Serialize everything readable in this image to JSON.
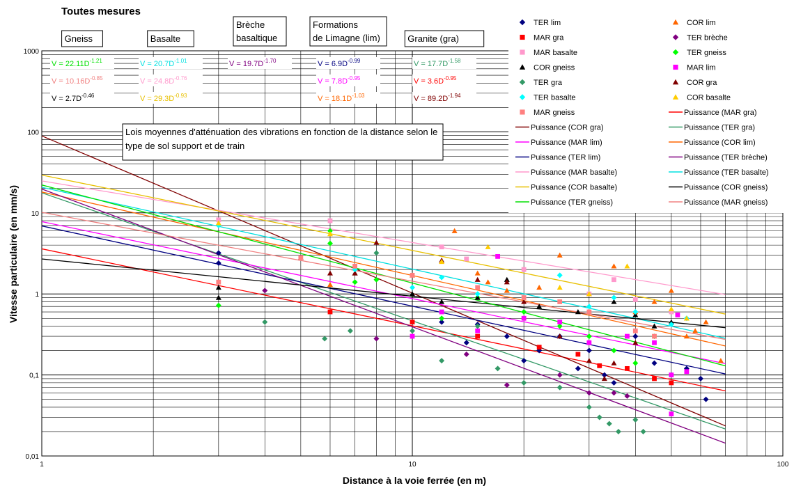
{
  "chart_data": {
    "type": "scatter",
    "title": "Toutes mesures",
    "xlabel": "Distance à la voie ferrée (en m)",
    "ylabel": "Vitesse particulaire (en mm/s)",
    "x_scale": "log",
    "y_scale": "log",
    "xlim": [
      1,
      100
    ],
    "ylim": [
      0.01,
      1000
    ],
    "x_ticks": [
      "1",
      "10",
      "100"
    ],
    "y_ticks": [
      "1000",
      "100",
      "10",
      "1",
      "0,1",
      "0,01"
    ],
    "grid": true,
    "legend_position": "top-right",
    "annotation": "Lois moyennes d'atténuation des vibrations en fonction de la distance selon le type de sol support et de train",
    "groups": [
      {
        "label": "Gneiss",
        "equations": [
          {
            "coef": "22.11",
            "exp": "-1.21",
            "color": "#00e000"
          },
          {
            "coef": "10.16",
            "exp": "-0.85",
            "color": "#f08080"
          },
          {
            "coef": "2.7",
            "exp": "-0.46",
            "color": "#000000"
          }
        ]
      },
      {
        "label": "Basalte",
        "equations": [
          {
            "coef": "20.7",
            "exp": "-1.01",
            "color": "#00e0e0"
          },
          {
            "coef": "24.8",
            "exp": "-0.76",
            "color": "#ff99cc"
          },
          {
            "coef": "29.3",
            "exp": "-0.93",
            "color": "#e8c000"
          }
        ]
      },
      {
        "label": "Brèche basaltique",
        "equations": [
          {
            "coef": "19.7",
            "exp": "-1.70",
            "color": "#800080"
          }
        ]
      },
      {
        "label": "Formations de Limagne (lim)",
        "equations": [
          {
            "coef": "6.9",
            "exp": "-0.99",
            "color": "#000080"
          },
          {
            "coef": "7.8",
            "exp": "-0.95",
            "color": "#ff00ff"
          },
          {
            "coef": "18.1",
            "exp": "-1.03",
            "color": "#ff6600"
          }
        ]
      },
      {
        "label": "Granite (gra)",
        "equations": [
          {
            "coef": "17.7",
            "exp": "-1.58",
            "color": "#339966"
          },
          {
            "coef": "3.6",
            "exp": "-0.95",
            "color": "#ff0000"
          },
          {
            "coef": "89.2",
            "exp": "-1.94",
            "color": "#800000"
          }
        ]
      }
    ],
    "series": [
      {
        "name": "TER lim",
        "marker": "diamond",
        "color": "#000080",
        "points": [
          [
            3,
            3.2
          ],
          [
            3,
            2.4
          ],
          [
            12,
            0.45
          ],
          [
            14,
            0.25
          ],
          [
            15,
            0.42
          ],
          [
            18,
            0.3
          ],
          [
            20,
            0.15
          ],
          [
            22,
            0.2
          ],
          [
            25,
            0.3
          ],
          [
            28,
            0.12
          ],
          [
            30,
            0.2
          ],
          [
            33,
            0.1
          ],
          [
            35,
            0.08
          ],
          [
            40,
            0.3
          ],
          [
            45,
            0.14
          ],
          [
            50,
            0.1
          ],
          [
            55,
            0.12
          ],
          [
            60,
            0.09
          ],
          [
            62,
            0.05
          ]
        ]
      },
      {
        "name": "COR lim",
        "marker": "triangle",
        "color": "#ff6600",
        "points": [
          [
            6,
            1.3
          ],
          [
            10,
            1.7
          ],
          [
            13,
            6.0
          ],
          [
            15,
            1.8
          ],
          [
            16,
            1.4
          ],
          [
            18,
            1.1
          ],
          [
            22,
            1.2
          ],
          [
            25,
            3.0
          ],
          [
            30,
            1.0
          ],
          [
            35,
            2.2
          ],
          [
            40,
            0.6
          ],
          [
            45,
            0.8
          ],
          [
            50,
            1.1
          ],
          [
            55,
            0.3
          ],
          [
            58,
            0.35
          ],
          [
            62,
            0.45
          ],
          [
            68,
            0.15
          ]
        ]
      },
      {
        "name": "MAR gra",
        "marker": "square",
        "color": "#ff0000",
        "points": [
          [
            6,
            0.6
          ],
          [
            10,
            0.45
          ],
          [
            15,
            0.3
          ],
          [
            22,
            0.22
          ],
          [
            28,
            0.18
          ],
          [
            32,
            0.13
          ],
          [
            38,
            0.12
          ],
          [
            45,
            0.09
          ],
          [
            50,
            0.08
          ]
        ]
      },
      {
        "name": "TER brèche",
        "marker": "diamond",
        "color": "#800080",
        "points": [
          [
            4,
            1.1
          ],
          [
            8,
            0.28
          ],
          [
            14,
            0.18
          ],
          [
            18,
            0.075
          ],
          [
            25,
            0.1
          ],
          [
            30,
            0.06
          ],
          [
            35,
            0.06
          ],
          [
            38,
            0.055
          ]
        ]
      },
      {
        "name": "MAR basalte",
        "marker": "square",
        "color": "#ff99cc",
        "points": [
          [
            3,
            8.2
          ],
          [
            6,
            8.0
          ],
          [
            12,
            3.8
          ],
          [
            14,
            2.7
          ],
          [
            20,
            2.0
          ],
          [
            30,
            1.0
          ],
          [
            35,
            1.5
          ],
          [
            40,
            0.85
          ],
          [
            50,
            0.6
          ]
        ]
      },
      {
        "name": "TER gneiss",
        "marker": "diamond",
        "color": "#00ff00",
        "points": [
          [
            3,
            0.72
          ],
          [
            6,
            6.0
          ],
          [
            6,
            4.2
          ],
          [
            7,
            1.4
          ],
          [
            8,
            1.5
          ],
          [
            12,
            0.5
          ],
          [
            15,
            0.9
          ],
          [
            20,
            0.6
          ],
          [
            25,
            0.4
          ],
          [
            30,
            0.3
          ],
          [
            35,
            0.2
          ],
          [
            40,
            0.14
          ],
          [
            45,
            0.3
          ]
        ]
      },
      {
        "name": "COR gneiss",
        "marker": "triangle",
        "color": "#000000",
        "points": [
          [
            3,
            1.2
          ],
          [
            3,
            0.9
          ],
          [
            7,
            1.8
          ],
          [
            10,
            1.0
          ],
          [
            12,
            0.8
          ],
          [
            15,
            0.9
          ],
          [
            18,
            1.5
          ],
          [
            22,
            0.7
          ],
          [
            28,
            0.6
          ],
          [
            35,
            0.8
          ],
          [
            40,
            0.55
          ],
          [
            45,
            0.4
          ],
          [
            50,
            0.45
          ]
        ]
      },
      {
        "name": "MAR lim",
        "marker": "square",
        "color": "#ff00ff",
        "points": [
          [
            10,
            0.3
          ],
          [
            12,
            0.6
          ],
          [
            15,
            0.35
          ],
          [
            17,
            2.9
          ],
          [
            20,
            0.5
          ],
          [
            25,
            0.45
          ],
          [
            30,
            0.25
          ],
          [
            38,
            0.3
          ],
          [
            45,
            0.25
          ],
          [
            50,
            0.1
          ],
          [
            50,
            0.033
          ],
          [
            52,
            0.55
          ],
          [
            55,
            0.11
          ]
        ]
      },
      {
        "name": "TER gra",
        "marker": "diamond",
        "color": "#339966",
        "points": [
          [
            4,
            0.45
          ],
          [
            5.8,
            0.28
          ],
          [
            6.8,
            0.35
          ],
          [
            8,
            3.2
          ],
          [
            10,
            0.35
          ],
          [
            12,
            0.15
          ],
          [
            15,
            0.4
          ],
          [
            17,
            0.12
          ],
          [
            20,
            0.08
          ],
          [
            25,
            0.07
          ],
          [
            30,
            0.04
          ],
          [
            32,
            0.03
          ],
          [
            34,
            0.025
          ],
          [
            36,
            0.02
          ],
          [
            40,
            0.028
          ],
          [
            42,
            0.02
          ]
        ]
      },
      {
        "name": "COR gra",
        "marker": "triangle",
        "color": "#800000",
        "points": [
          [
            5,
            2.8
          ],
          [
            6,
            1.8
          ],
          [
            7,
            1.8
          ],
          [
            8,
            4.3
          ],
          [
            12,
            2.6
          ],
          [
            15,
            1.5
          ],
          [
            18,
            1.4
          ],
          [
            20,
            0.8
          ],
          [
            25,
            0.3
          ],
          [
            30,
            0.15
          ],
          [
            33,
            0.09
          ],
          [
            35,
            0.14
          ],
          [
            40,
            0.25
          ]
        ]
      },
      {
        "name": "TER basalte",
        "marker": "diamond",
        "color": "#00ffff",
        "points": [
          [
            3,
            7.0
          ],
          [
            7,
            2.0
          ],
          [
            10,
            1.2
          ],
          [
            12,
            1.6
          ],
          [
            15,
            1.0
          ],
          [
            20,
            0.9
          ],
          [
            25,
            1.7
          ],
          [
            30,
            0.7
          ],
          [
            35,
            0.9
          ],
          [
            40,
            0.6
          ],
          [
            50,
            0.42
          ],
          [
            55,
            0.5
          ]
        ]
      },
      {
        "name": "COR basalte",
        "marker": "triangle",
        "color": "#ffcc00",
        "points": [
          [
            3,
            7.5
          ],
          [
            6,
            5.5
          ],
          [
            12,
            2.5
          ],
          [
            16,
            3.8
          ],
          [
            25,
            1.2
          ],
          [
            30,
            1.0
          ],
          [
            38,
            2.2
          ],
          [
            50,
            0.65
          ],
          [
            55,
            0.5
          ]
        ]
      },
      {
        "name": "MAR gneiss",
        "marker": "square",
        "color": "#ff8080",
        "points": [
          [
            3,
            1.4
          ],
          [
            5,
            2.8
          ],
          [
            7,
            2.2
          ],
          [
            10,
            1.7
          ],
          [
            15,
            1.2
          ],
          [
            20,
            0.9
          ],
          [
            25,
            0.8
          ],
          [
            30,
            0.6
          ],
          [
            40,
            0.35
          ],
          [
            45,
            0.3
          ]
        ]
      }
    ],
    "trendlines": [
      {
        "name": "Puissance (MAR gra)",
        "coef": 3.6,
        "exp": -0.95,
        "color": "#ff0000"
      },
      {
        "name": "Puissance (COR gra)",
        "coef": 89.2,
        "exp": -1.94,
        "color": "#800000"
      },
      {
        "name": "Puissance (TER gra)",
        "coef": 17.7,
        "exp": -1.58,
        "color": "#339966"
      },
      {
        "name": "Puissance (MAR lim)",
        "coef": 7.8,
        "exp": -0.95,
        "color": "#ff00ff"
      },
      {
        "name": "Puissance (COR lim)",
        "coef": 18.1,
        "exp": -1.03,
        "color": "#ff6600"
      },
      {
        "name": "Puissance (TER lim)",
        "coef": 6.9,
        "exp": -0.99,
        "color": "#000080"
      },
      {
        "name": "Puissance (TER brèche)",
        "coef": 19.7,
        "exp": -1.7,
        "color": "#800080"
      },
      {
        "name": "Puissance (MAR basalte)",
        "coef": 24.8,
        "exp": -0.76,
        "color": "#ff99cc"
      },
      {
        "name": "Puissance (TER basalte)",
        "coef": 20.7,
        "exp": -1.01,
        "color": "#00e0e0"
      },
      {
        "name": "Puissance (COR basalte)",
        "coef": 29.3,
        "exp": -0.93,
        "color": "#e8c000"
      },
      {
        "name": "Puissance (COR gneiss)",
        "coef": 2.7,
        "exp": -0.46,
        "color": "#000000"
      },
      {
        "name": "Puissance (TER gneiss)",
        "coef": 22.11,
        "exp": -1.21,
        "color": "#00e000"
      },
      {
        "name": "Puissance (MAR gneiss)",
        "coef": 10.16,
        "exp": -0.85,
        "color": "#f08080"
      }
    ]
  }
}
